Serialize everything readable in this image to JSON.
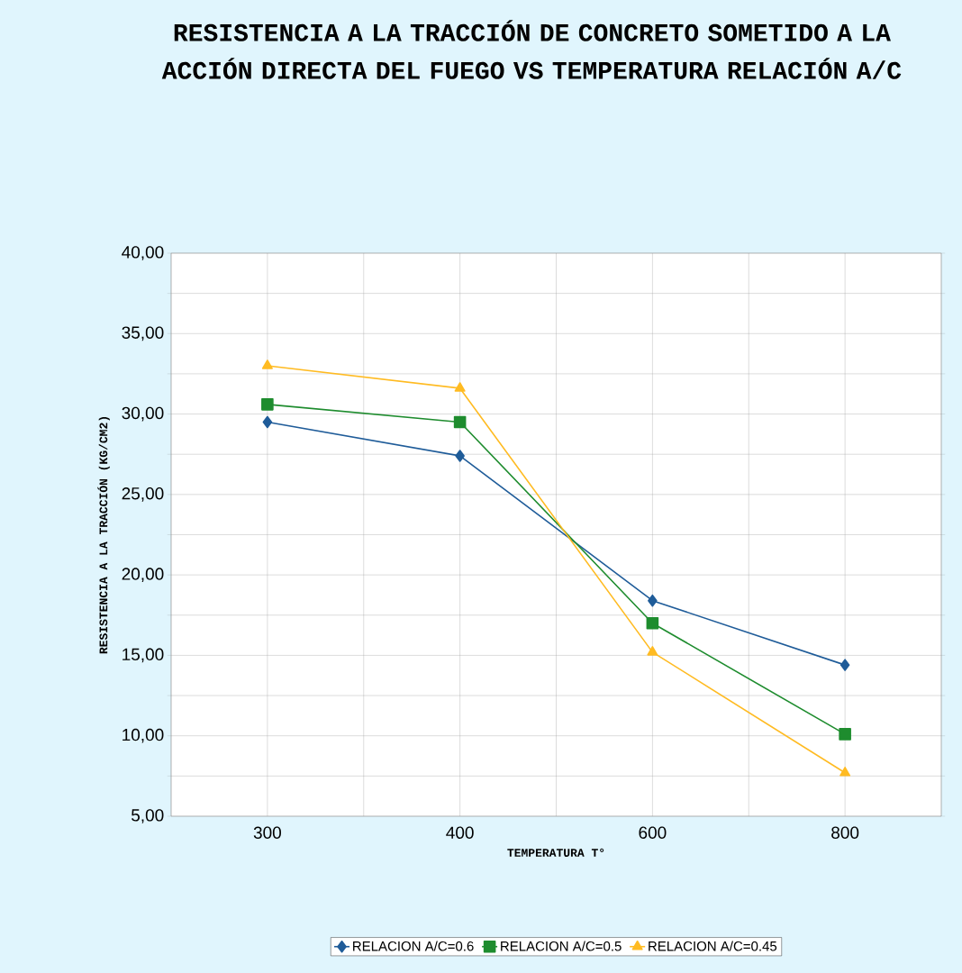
{
  "chart_data": {
    "type": "line",
    "title": "RESISTENCIA A LA TRACCIÓN DE CONCRETO SOMETIDO A LA ACCIÓN  DIRECTA DEL FUEGO  VS TEMPERATURA RELACIÓN A/C",
    "xlabel": "TEMPERATURA T°",
    "ylabel": "RESISTENCIA A LA TRACCIÓN (KG/CM2)",
    "categories": [
      "300",
      "400",
      "600",
      "800"
    ],
    "series": [
      {
        "name": "RELACION A/C=0.6",
        "color": "#1f5c99",
        "marker": "diamond",
        "values": [
          29.5,
          27.4,
          18.4,
          14.4
        ]
      },
      {
        "name": "RELACION A/C=0.5",
        "color": "#1e8c2e",
        "marker": "square",
        "values": [
          30.6,
          29.5,
          17.0,
          10.1
        ]
      },
      {
        "name": "RELACION A/C=0.45",
        "color": "#ffbb22",
        "marker": "triangle",
        "values": [
          33.0,
          31.6,
          15.2,
          7.7
        ]
      }
    ],
    "ylim": [
      5,
      40
    ],
    "yticks": [
      {
        "value": 5,
        "label": "5,00"
      },
      {
        "value": 7.5,
        "label": null
      },
      {
        "value": 10,
        "label": "10,00"
      },
      {
        "value": 12.5,
        "label": null
      },
      {
        "value": 15,
        "label": "15,00"
      },
      {
        "value": 17.5,
        "label": null
      },
      {
        "value": 20,
        "label": "20,00"
      },
      {
        "value": 22.5,
        "label": null
      },
      {
        "value": 25,
        "label": "25,00"
      },
      {
        "value": 27.5,
        "label": null
      },
      {
        "value": 30,
        "label": "30,00"
      },
      {
        "value": 32.5,
        "label": null
      },
      {
        "value": 35,
        "label": "35,00"
      },
      {
        "value": 37.5,
        "label": null
      },
      {
        "value": 40,
        "label": "40,00"
      }
    ],
    "grid": true,
    "legend": "bottom"
  }
}
